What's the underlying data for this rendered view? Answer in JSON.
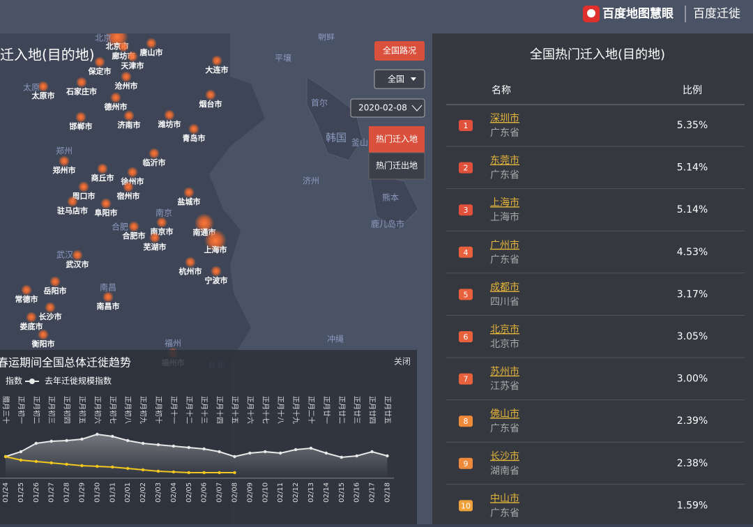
{
  "header": {
    "brand": "百度地图慧眼",
    "product": "百度迁徙"
  },
  "controls": {
    "traffic": "全国路况",
    "region": "全国",
    "date": "2020-02-08",
    "tab_in": "热门迁入地",
    "tab_out": "热门迁出地"
  },
  "map": {
    "title": "迁入地(目的地)",
    "cities": [
      "北京市",
      "廊坊市",
      "唐山市",
      "天津市",
      "保定市",
      "大连市",
      "石家庄市",
      "沧州市",
      "太原市",
      "德州市",
      "烟台市",
      "济南市",
      "潍坊市",
      "邯郸市",
      "青岛市",
      "临沂市",
      "郑州市",
      "商丘市",
      "徐州市",
      "周口市",
      "宿州市",
      "盐城市",
      "驻马店市",
      "阜阳市",
      "南京市",
      "南通市",
      "合肥市",
      "芜湖市",
      "上海市",
      "武汉市",
      "杭州市",
      "宁波市",
      "岳阳市",
      "常德市",
      "南昌市",
      "长沙市",
      "娄底市",
      "衡阳市",
      "福州市"
    ],
    "places": [
      "朝鲜",
      "平壤",
      "首尔",
      "韩国",
      "釜山",
      "济州",
      "熊本",
      "鹿儿岛市",
      "冲绳",
      "台北",
      "福州",
      "郑州",
      "南京",
      "合肥",
      "武汉",
      "南昌",
      "太原",
      "北京"
    ]
  },
  "ranking": {
    "title": "全国热门迁入地(目的地)",
    "columns": [
      "名称",
      "比例"
    ],
    "rows": [
      {
        "rank": "1",
        "city": "深圳市",
        "province": "广东省",
        "share": "5.35%"
      },
      {
        "rank": "2",
        "city": "东莞市",
        "province": "广东省",
        "share": "5.14%"
      },
      {
        "rank": "3",
        "city": "上海市",
        "province": "上海市",
        "share": "5.14%"
      },
      {
        "rank": "4",
        "city": "广州市",
        "province": "广东省",
        "share": "4.53%"
      },
      {
        "rank": "5",
        "city": "成都市",
        "province": "四川省",
        "share": "3.17%"
      },
      {
        "rank": "6",
        "city": "北京市",
        "province": "北京市",
        "share": "3.05%"
      },
      {
        "rank": "7",
        "city": "苏州市",
        "province": "江苏省",
        "share": "3.00%"
      },
      {
        "rank": "8",
        "city": "佛山市",
        "province": "广东省",
        "share": "2.39%"
      },
      {
        "rank": "9",
        "city": "长沙市",
        "province": "湖南省",
        "share": "2.38%"
      },
      {
        "rank": "10",
        "city": "中山市",
        "province": "广东省",
        "share": "1.59%"
      }
    ]
  },
  "chart_data": {
    "type": "line",
    "title": "春运期间全国总体迁徙趋势",
    "close": "关闭",
    "categories": [
      "01/24",
      "01/25",
      "01/26",
      "01/27",
      "01/28",
      "01/29",
      "01/30",
      "01/31",
      "02/01",
      "02/02",
      "02/03",
      "02/04",
      "02/05",
      "02/06",
      "02/07",
      "02/08",
      "02/09",
      "02/10",
      "02/11",
      "02/12",
      "02/13",
      "02/14",
      "02/15",
      "02/16",
      "02/17",
      "02/18"
    ],
    "lunar": [
      "腊月三十",
      "正月初一",
      "正月初二",
      "正月初三",
      "正月初四",
      "正月初五",
      "正月初六",
      "正月初七",
      "正月初八",
      "正月初九",
      "正月初十",
      "正月十一",
      "正月十二",
      "正月十三",
      "正月十四",
      "正月十五",
      "正月十六",
      "正月十七",
      "正月十八",
      "正月十九",
      "正月二十",
      "正月廿一",
      "正月廿二",
      "正月廿三",
      "正月廿四",
      "正月廿五"
    ],
    "ylim": [
      0,
      8
    ],
    "series": [
      {
        "name": "指数",
        "color": "#f2c81e",
        "values": [
          3.1,
          2.6,
          2.4,
          2.2,
          2.0,
          1.8,
          1.7,
          1.6,
          1.4,
          1.2,
          1.0,
          0.9,
          0.8,
          0.8,
          0.8,
          0.8,
          null,
          null,
          null,
          null,
          null,
          null,
          null,
          null,
          null,
          null
        ]
      },
      {
        "name": "去年迁徙规模指数",
        "color": "#e8e8e8",
        "values": [
          3.1,
          3.8,
          5.0,
          5.3,
          5.4,
          5.6,
          6.3,
          6.0,
          5.4,
          5.0,
          4.8,
          4.6,
          4.4,
          4.2,
          3.8,
          3.1,
          3.6,
          3.8,
          3.6,
          4.1,
          4.3,
          3.6,
          3.0,
          3.2,
          3.8,
          3.2
        ]
      }
    ]
  }
}
